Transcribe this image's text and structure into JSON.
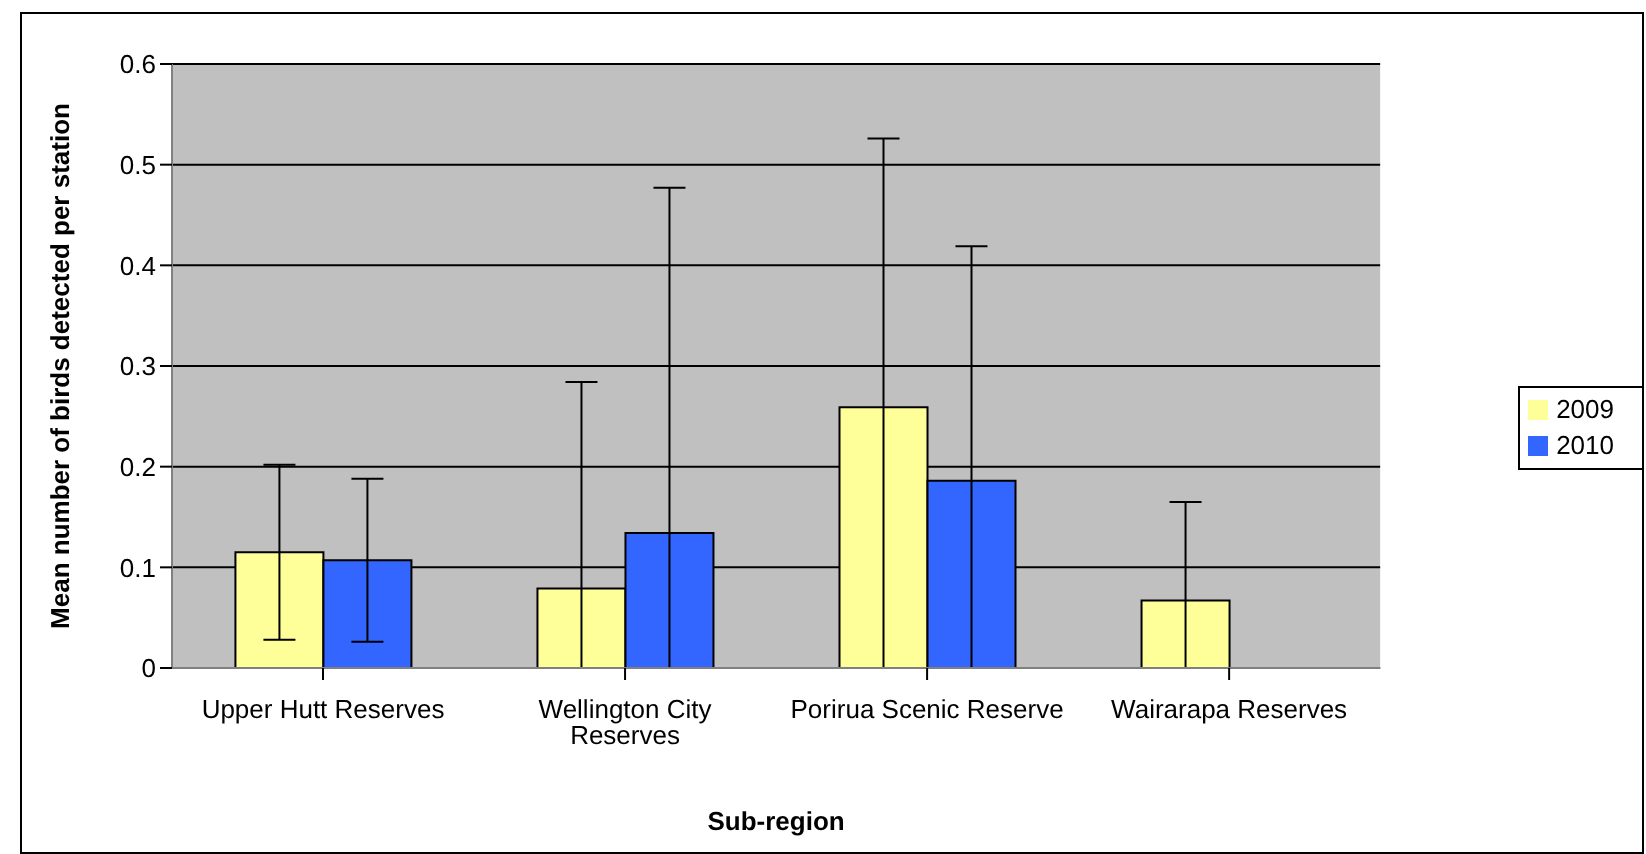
{
  "chart_data": {
    "type": "bar",
    "xlabel": "Sub-region",
    "ylabel": "Mean number of birds detected per station",
    "categories": [
      "Upper Hutt Reserves",
      "Wellington City Reserves",
      "Porirua Scenic Reserve",
      "Wairarapa Reserves"
    ],
    "series": [
      {
        "name": "2009",
        "color": "#ffff99",
        "values": [
          0.115,
          0.079,
          0.259,
          0.067
        ],
        "errors": [
          [
            0.028,
            0.202
          ],
          [
            0,
            0.284
          ],
          [
            0,
            0.526
          ],
          [
            0,
            0.165
          ]
        ]
      },
      {
        "name": "2010",
        "color": "#3366ff",
        "values": [
          0.107,
          0.134,
          0.186,
          null
        ],
        "errors": [
          [
            0.026,
            0.188
          ],
          [
            0,
            0.477
          ],
          [
            0,
            0.419
          ],
          null
        ]
      }
    ],
    "ylim": [
      0,
      0.6
    ],
    "yticks": [
      0,
      0.1,
      0.2,
      0.3,
      0.4,
      0.5,
      0.6
    ],
    "grid": "y",
    "legend": "right"
  }
}
